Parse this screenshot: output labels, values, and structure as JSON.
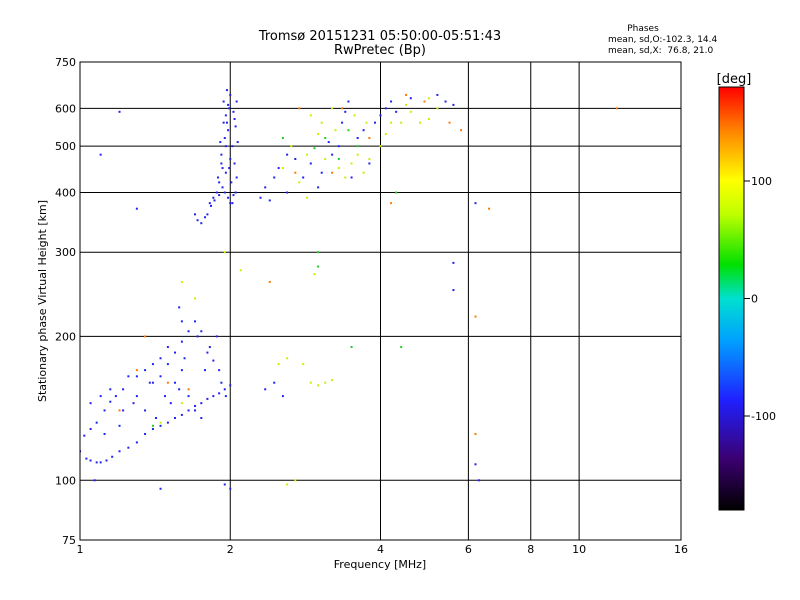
{
  "chart_data": {
    "type": "scatter",
    "title": "Tromsø 20151231 05:50:00-05:51:43",
    "subtitle": "RwPretec (Bp)",
    "xlabel": "Frequency [MHz]",
    "ylabel": "Stationary phase Virtual Height [km]",
    "xscale": "log",
    "yscale": "log",
    "xlim": [
      1,
      16
    ],
    "ylim": [
      75,
      750
    ],
    "xticks": [
      "1",
      "2",
      "4",
      "6",
      "8",
      "10",
      "16"
    ],
    "yticks": [
      "75",
      "100",
      "200",
      "300",
      "400",
      "500",
      "600",
      "750"
    ],
    "x_gridlines": [
      2,
      4,
      6,
      8,
      10
    ],
    "y_gridlines": [
      100,
      200,
      300,
      400,
      500,
      600
    ],
    "stats": {
      "heading": "Phases",
      "line_o": "mean, sd,O:-102.3, 14.4",
      "line_x": "mean, sd,X:  76.8, 21.0"
    },
    "colorbar": {
      "label": "[deg]",
      "range": [
        -180,
        180
      ],
      "ticks": [
        "100",
        "0",
        "-100"
      ],
      "tick_values": [
        100,
        0,
        -100
      ]
    },
    "series": [
      {
        "points": [
          [
            1.0,
            115
          ],
          [
            1.03,
            111
          ],
          [
            1.05,
            110
          ],
          [
            1.08,
            109
          ],
          [
            1.1,
            109
          ],
          [
            1.13,
            110
          ],
          [
            1.16,
            112
          ],
          [
            1.2,
            115
          ],
          [
            1.25,
            117
          ],
          [
            1.3,
            120
          ],
          [
            1.35,
            125
          ],
          [
            1.4,
            128
          ],
          [
            1.45,
            130
          ],
          [
            1.5,
            132
          ],
          [
            1.55,
            135
          ],
          [
            1.6,
            137
          ],
          [
            1.65,
            140
          ],
          [
            1.7,
            143
          ],
          [
            1.75,
            145
          ],
          [
            1.8,
            148
          ],
          [
            1.85,
            150
          ],
          [
            1.9,
            152
          ],
          [
            1.95,
            155
          ],
          [
            2.0,
            158
          ],
          [
            1.02,
            124
          ],
          [
            1.05,
            128
          ],
          [
            1.08,
            132
          ],
          [
            1.12,
            140
          ],
          [
            1.15,
            146
          ],
          [
            1.18,
            150
          ],
          [
            1.22,
            155
          ],
          [
            1.3,
            165
          ],
          [
            1.35,
            170
          ],
          [
            1.4,
            160
          ],
          [
            1.45,
            165
          ],
          [
            1.5,
            175
          ],
          [
            1.55,
            185
          ],
          [
            1.6,
            195
          ],
          [
            1.65,
            205
          ],
          [
            1.7,
            215
          ],
          [
            1.75,
            205
          ],
          [
            1.8,
            185
          ],
          [
            1.85,
            178
          ],
          [
            1.9,
            170
          ],
          [
            1.6,
            215
          ],
          [
            1.58,
            230
          ],
          [
            1.62,
            180
          ],
          [
            1.72,
            200
          ],
          [
            1.78,
            170
          ],
          [
            1.82,
            190
          ],
          [
            1.88,
            200
          ],
          [
            1.92,
            160
          ],
          [
            1.96,
            150
          ],
          [
            1.5,
            190
          ],
          [
            1.45,
            180
          ],
          [
            1.4,
            175
          ],
          [
            1.55,
            160
          ],
          [
            1.6,
            170
          ],
          [
            1.65,
            150
          ],
          [
            1.7,
            140
          ],
          [
            1.75,
            135
          ],
          [
            1.3,
            150
          ],
          [
            1.25,
            165
          ],
          [
            1.35,
            140
          ],
          [
            1.42,
            135
          ],
          [
            1.48,
            150
          ],
          [
            1.52,
            145
          ],
          [
            1.58,
            155
          ],
          [
            1.12,
            125
          ],
          [
            1.2,
            130
          ],
          [
            1.7,
            360
          ],
          [
            1.72,
            350
          ],
          [
            1.75,
            345
          ],
          [
            1.78,
            355
          ],
          [
            1.8,
            360
          ],
          [
            1.83,
            375
          ],
          [
            1.86,
            385
          ],
          [
            1.9,
            395
          ],
          [
            1.93,
            410
          ],
          [
            1.96,
            440
          ],
          [
            2.0,
            470
          ],
          [
            1.92,
            480
          ],
          [
            1.95,
            520
          ],
          [
            1.97,
            560
          ],
          [
            1.99,
            600
          ],
          [
            2.0,
            640
          ],
          [
            1.94,
            620
          ],
          [
            1.96,
            580
          ],
          [
            1.98,
            540
          ],
          [
            2.02,
            500
          ],
          [
            2.04,
            460
          ],
          [
            2.06,
            430
          ],
          [
            2.05,
            400
          ],
          [
            2.02,
            380
          ],
          [
            1.98,
            390
          ],
          [
            1.95,
            400
          ],
          [
            1.9,
            420
          ],
          [
            1.88,
            400
          ],
          [
            1.85,
            390
          ],
          [
            1.82,
            380
          ],
          [
            2.03,
            590
          ],
          [
            2.05,
            550
          ],
          [
            2.07,
            510
          ],
          [
            2.06,
            620
          ],
          [
            1.97,
            655
          ],
          [
            2.01,
            420
          ],
          [
            1.99,
            450
          ],
          [
            1.93,
            450
          ],
          [
            1.91,
            510
          ],
          [
            1.94,
            560
          ],
          [
            1.98,
            610
          ],
          [
            2.04,
            570
          ],
          [
            1.96,
            500
          ],
          [
            1.92,
            460
          ],
          [
            1.89,
            430
          ],
          [
            2.0,
            380
          ],
          [
            2.03,
            395
          ],
          [
            1.1,
            150
          ],
          [
            1.15,
            155
          ],
          [
            1.05,
            145
          ],
          [
            1.07,
            100
          ],
          [
            1.45,
            96
          ],
          [
            1.95,
            98
          ],
          [
            2.0,
            96
          ],
          [
            1.1,
            480
          ],
          [
            1.2,
            590
          ],
          [
            1.3,
            370
          ],
          [
            1.22,
            140
          ],
          [
            1.28,
            145
          ],
          [
            1.38,
            160
          ],
          [
            2.3,
            390
          ],
          [
            2.35,
            410
          ],
          [
            2.4,
            385
          ],
          [
            2.45,
            430
          ],
          [
            2.5,
            450
          ],
          [
            2.6,
            400
          ],
          [
            2.7,
            470
          ],
          [
            2.8,
            430
          ],
          [
            2.9,
            460
          ],
          [
            3.0,
            410
          ],
          [
            3.2,
            480
          ],
          [
            3.3,
            500
          ],
          [
            3.5,
            430
          ],
          [
            3.6,
            520
          ],
          [
            3.7,
            540
          ],
          [
            3.8,
            460
          ],
          [
            3.9,
            560
          ],
          [
            4.0,
            580
          ],
          [
            4.1,
            600
          ],
          [
            4.2,
            620
          ],
          [
            4.3,
            590
          ],
          [
            4.6,
            630
          ],
          [
            5.2,
            640
          ],
          [
            5.4,
            620
          ],
          [
            5.6,
            610
          ],
          [
            3.4,
            590
          ],
          [
            3.45,
            620
          ],
          [
            2.35,
            155
          ],
          [
            2.45,
            160
          ],
          [
            2.55,
            150
          ],
          [
            5.6,
            285
          ],
          [
            5.6,
            250
          ],
          [
            6.2,
            380
          ],
          [
            6.2,
            108
          ],
          [
            6.3,
            100
          ],
          [
            2.6,
            480
          ],
          [
            3.05,
            440
          ],
          [
            3.15,
            510
          ],
          [
            3.35,
            560
          ]
        ]
      },
      {
        "points": [
          [
            2.55,
            450
          ],
          [
            2.65,
            500
          ],
          [
            2.75,
            420
          ],
          [
            2.85,
            480
          ],
          [
            3.0,
            530
          ],
          [
            3.05,
            560
          ],
          [
            3.1,
            470
          ],
          [
            3.2,
            600
          ],
          [
            3.3,
            450
          ],
          [
            3.4,
            430
          ],
          [
            3.5,
            460
          ],
          [
            3.6,
            480
          ],
          [
            3.7,
            440
          ],
          [
            3.8,
            470
          ],
          [
            4.0,
            500
          ],
          [
            4.2,
            560
          ],
          [
            4.4,
            560
          ],
          [
            4.6,
            590
          ],
          [
            4.8,
            560
          ],
          [
            5.0,
            570
          ],
          [
            5.2,
            600
          ],
          [
            2.9,
            160
          ],
          [
            3.0,
            158
          ],
          [
            3.1,
            160
          ],
          [
            3.2,
            162
          ],
          [
            2.6,
            98
          ],
          [
            2.7,
            100
          ],
          [
            2.5,
            175
          ],
          [
            2.6,
            180
          ],
          [
            1.95,
            300
          ],
          [
            1.6,
            260
          ],
          [
            1.7,
            240
          ],
          [
            2.1,
            275
          ],
          [
            2.9,
            580
          ],
          [
            3.25,
            540
          ],
          [
            4.1,
            530
          ],
          [
            4.5,
            610
          ],
          [
            5.0,
            630
          ],
          [
            3.55,
            580
          ],
          [
            3.75,
            560
          ],
          [
            2.95,
            270
          ],
          [
            2.8,
            175
          ],
          [
            1.45,
            132
          ],
          [
            1.6,
            145
          ],
          [
            2.85,
            390
          ]
        ]
      },
      {
        "points": [
          [
            3.0,
            300
          ],
          [
            3.0,
            280
          ],
          [
            3.5,
            190
          ],
          [
            4.4,
            190
          ],
          [
            1.4,
            130
          ],
          [
            3.1,
            520
          ],
          [
            3.3,
            470
          ],
          [
            3.6,
            500
          ],
          [
            2.55,
            520
          ],
          [
            4.3,
            400
          ],
          [
            2.95,
            495
          ],
          [
            3.45,
            540
          ]
        ]
      },
      {
        "points": [
          [
            1.2,
            140
          ],
          [
            1.35,
            200
          ],
          [
            1.5,
            160
          ],
          [
            1.65,
            155
          ],
          [
            5.8,
            540
          ],
          [
            6.2,
            220
          ],
          [
            6.6,
            370
          ],
          [
            2.4,
            260
          ],
          [
            3.2,
            440
          ],
          [
            3.8,
            520
          ],
          [
            4.5,
            640
          ],
          [
            4.2,
            380
          ],
          [
            5.5,
            560
          ],
          [
            2.7,
            440
          ],
          [
            11.9,
            600
          ],
          [
            6.2,
            125
          ],
          [
            3.35,
            600
          ],
          [
            4.9,
            620
          ],
          [
            2.75,
            600
          ],
          [
            1.3,
            170
          ]
        ]
      }
    ]
  }
}
